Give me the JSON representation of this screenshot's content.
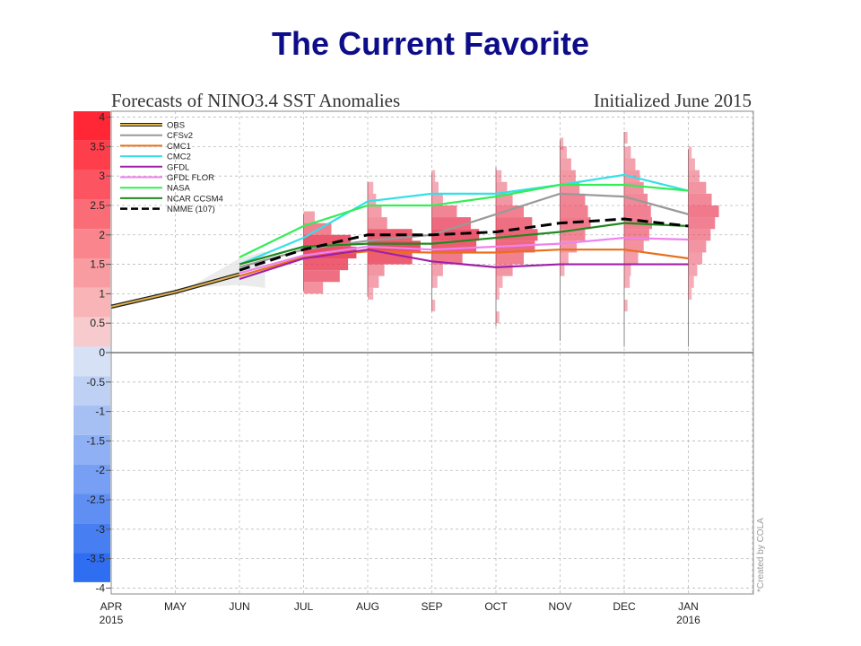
{
  "slide": {
    "title": "The Current Favorite"
  },
  "chart_data": {
    "type": "line",
    "title": "Forecasts of NINO3.4 SST Anomalies",
    "subtitle": "Initialized June 2015",
    "credit": "*Created by COLA",
    "ylim": [
      -4.1,
      4.1
    ],
    "yticks": [
      "4",
      "3.5",
      "3",
      "2.5",
      "2",
      "1.5",
      "1",
      "0.5",
      "0",
      "-0.5",
      "-1",
      "-1.5",
      "-2",
      "-2.5",
      "-3",
      "-3.5",
      "-4"
    ],
    "x_labels": [
      {
        "month": "APR",
        "year": "2015"
      },
      {
        "month": "MAY",
        "year": ""
      },
      {
        "month": "JUN",
        "year": ""
      },
      {
        "month": "JUL",
        "year": ""
      },
      {
        "month": "AUG",
        "year": ""
      },
      {
        "month": "SEP",
        "year": ""
      },
      {
        "month": "OCT",
        "year": ""
      },
      {
        "month": "NOV",
        "year": ""
      },
      {
        "month": "DEC",
        "year": ""
      },
      {
        "month": "JAN",
        "year": "2016"
      }
    ],
    "grid": true,
    "legend_position": "top-left",
    "series": [
      {
        "name": "OBS",
        "color": "#333333",
        "style": "obs",
        "x": [
          0,
          1,
          2
        ],
        "values": [
          0.78,
          1.03,
          1.33
        ]
      },
      {
        "name": "CFSv2",
        "color": "#999999",
        "style": "solid",
        "x": [
          2,
          3,
          4,
          5,
          6,
          7,
          8,
          9
        ],
        "values": [
          1.45,
          1.75,
          1.9,
          2.0,
          2.35,
          2.7,
          2.65,
          2.35
        ]
      },
      {
        "name": "CMC1",
        "color": "#e8701a",
        "style": "solid",
        "x": [
          2,
          3,
          4,
          5,
          6,
          7,
          8,
          9
        ],
        "values": [
          1.3,
          1.62,
          1.72,
          1.7,
          1.7,
          1.75,
          1.75,
          1.6
        ]
      },
      {
        "name": "CMC2",
        "color": "#33e0e8",
        "style": "solid",
        "x": [
          2,
          3,
          4,
          5,
          6,
          7,
          8,
          9
        ],
        "values": [
          1.5,
          1.95,
          2.57,
          2.7,
          2.7,
          2.85,
          3.02,
          2.75
        ]
      },
      {
        "name": "GFDL",
        "color": "#a020a8",
        "style": "solid",
        "x": [
          2,
          3,
          4,
          5,
          6,
          7,
          8,
          9
        ],
        "values": [
          1.25,
          1.6,
          1.75,
          1.55,
          1.45,
          1.5,
          1.5,
          1.5
        ]
      },
      {
        "name": "GFDL FLOR",
        "color": "#ee82ee",
        "style": "solid",
        "x": [
          2,
          3,
          4,
          5,
          6,
          7,
          8,
          9
        ],
        "values": [
          1.35,
          1.65,
          1.8,
          1.75,
          1.8,
          1.85,
          1.95,
          1.92
        ]
      },
      {
        "name": "NASA",
        "color": "#33ee55",
        "style": "solid",
        "x": [
          2,
          3,
          4,
          5,
          6,
          7,
          8,
          9
        ],
        "values": [
          1.62,
          2.15,
          2.5,
          2.5,
          2.65,
          2.85,
          2.85,
          2.75
        ]
      },
      {
        "name": "NCAR CCSM4",
        "color": "#1f8a1f",
        "style": "solid",
        "x": [
          2,
          3,
          4,
          5,
          6,
          7,
          8,
          9
        ],
        "values": [
          1.5,
          1.8,
          1.85,
          1.85,
          1.95,
          2.05,
          2.2,
          2.15
        ]
      },
      {
        "name": "NMME (107)",
        "color": "#000000",
        "style": "dashed",
        "x": [
          2,
          3,
          4,
          5,
          6,
          7,
          8,
          9
        ],
        "values": [
          1.4,
          1.75,
          2.0,
          2.0,
          2.05,
          2.2,
          2.27,
          2.15
        ]
      }
    ],
    "spread_bars": [
      {
        "x": 3,
        "min": 1.05,
        "max": 2.35,
        "hist": [
          [
            1.1,
            0.35
          ],
          [
            1.3,
            0.65
          ],
          [
            1.5,
            0.8
          ],
          [
            1.7,
            0.95
          ],
          [
            1.9,
            0.85
          ],
          [
            2.1,
            0.5
          ],
          [
            2.3,
            0.2
          ]
        ]
      },
      {
        "x": 4,
        "min": 0.95,
        "max": 2.9,
        "hist": [
          [
            1.0,
            0.1
          ],
          [
            1.2,
            0.2
          ],
          [
            1.4,
            0.3
          ],
          [
            1.6,
            0.8
          ],
          [
            1.8,
            0.95
          ],
          [
            2.0,
            0.8
          ],
          [
            2.2,
            0.35
          ],
          [
            2.4,
            0.25
          ],
          [
            2.6,
            0.15
          ],
          [
            2.8,
            0.1
          ]
        ]
      },
      {
        "x": 5,
        "min": 0.7,
        "max": 3.05,
        "hist": [
          [
            0.8,
            0.06
          ],
          [
            1.2,
            0.1
          ],
          [
            1.4,
            0.2
          ],
          [
            1.6,
            0.55
          ],
          [
            1.8,
            0.8
          ],
          [
            2.0,
            0.85
          ],
          [
            2.2,
            0.7
          ],
          [
            2.4,
            0.45
          ],
          [
            2.6,
            0.2
          ],
          [
            2.8,
            0.12
          ],
          [
            3.0,
            0.06
          ]
        ]
      },
      {
        "x": 6,
        "min": 0.45,
        "max": 3.15,
        "hist": [
          [
            0.6,
            0.06
          ],
          [
            1.0,
            0.06
          ],
          [
            1.2,
            0.12
          ],
          [
            1.4,
            0.3
          ],
          [
            1.6,
            0.5
          ],
          [
            1.8,
            0.7
          ],
          [
            2.0,
            0.75
          ],
          [
            2.2,
            0.65
          ],
          [
            2.4,
            0.5
          ],
          [
            2.6,
            0.3
          ],
          [
            2.8,
            0.2
          ],
          [
            3.0,
            0.1
          ]
        ]
      },
      {
        "x": 7,
        "min": 0.2,
        "max": 3.6,
        "hist": [
          [
            1.4,
            0.08
          ],
          [
            1.6,
            0.15
          ],
          [
            1.8,
            0.3
          ],
          [
            2.0,
            0.45
          ],
          [
            2.2,
            0.55
          ],
          [
            2.4,
            0.5
          ],
          [
            2.6,
            0.45
          ],
          [
            2.8,
            0.35
          ],
          [
            3.0,
            0.28
          ],
          [
            3.2,
            0.2
          ],
          [
            3.4,
            0.12
          ],
          [
            3.55,
            0.06
          ]
        ]
      },
      {
        "x": 8,
        "min": 0.1,
        "max": 3.75,
        "hist": [
          [
            0.8,
            0.06
          ],
          [
            1.2,
            0.1
          ],
          [
            1.4,
            0.12
          ],
          [
            1.6,
            0.25
          ],
          [
            1.8,
            0.35
          ],
          [
            2.0,
            0.45
          ],
          [
            2.2,
            0.5
          ],
          [
            2.4,
            0.48
          ],
          [
            2.6,
            0.42
          ],
          [
            2.8,
            0.35
          ],
          [
            3.0,
            0.28
          ],
          [
            3.2,
            0.2
          ],
          [
            3.4,
            0.12
          ],
          [
            3.65,
            0.06
          ]
        ]
      },
      {
        "x": 9,
        "min": 0.1,
        "max": 3.45,
        "hist": [
          [
            1.0,
            0.06
          ],
          [
            1.2,
            0.1
          ],
          [
            1.4,
            0.16
          ],
          [
            1.6,
            0.25
          ],
          [
            1.8,
            0.32
          ],
          [
            2.0,
            0.4
          ],
          [
            2.2,
            0.48
          ],
          [
            2.4,
            0.55
          ],
          [
            2.6,
            0.42
          ],
          [
            2.8,
            0.32
          ],
          [
            3.0,
            0.2
          ],
          [
            3.2,
            0.12
          ],
          [
            3.4,
            0.06
          ]
        ]
      }
    ],
    "colorbar_colors": {
      "warm": "#ff2222",
      "cool": "#2266ee",
      "neutral": "#eeeeee"
    }
  }
}
